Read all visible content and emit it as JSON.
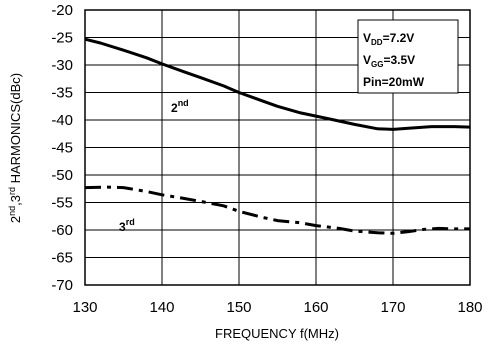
{
  "chart_data": {
    "type": "line",
    "title": "",
    "xlabel": "FREQUENCY f(MHz)",
    "ylabel": {
      "a": "2",
      "a_sup": "nd",
      "b": ",3",
      "b_sup": "rd",
      "c": " HARMONICS(dBc)"
    },
    "xlim": [
      130,
      180
    ],
    "ylim": [
      -70,
      -20
    ],
    "x_ticks": [
      "130",
      "140",
      "150",
      "160",
      "170",
      "180"
    ],
    "y_ticks": [
      "-20",
      "-25",
      "-30",
      "-35",
      "-40",
      "-45",
      "-50",
      "-55",
      "-60",
      "-65",
      "-70"
    ],
    "grid": true,
    "series": [
      {
        "name": "2nd",
        "style": "solid",
        "label": {
          "base": "2",
          "sup": "nd"
        },
        "x": [
          130,
          132,
          135,
          138,
          140,
          143,
          145,
          148,
          150,
          153,
          155,
          158,
          160,
          162,
          165,
          168,
          170,
          172,
          175,
          178,
          180
        ],
        "values": [
          -25.3,
          -26.0,
          -27.3,
          -28.7,
          -29.8,
          -31.3,
          -32.3,
          -33.8,
          -35.0,
          -36.5,
          -37.5,
          -38.7,
          -39.3,
          -39.9,
          -40.8,
          -41.6,
          -41.7,
          -41.5,
          -41.2,
          -41.2,
          -41.3
        ]
      },
      {
        "name": "3rd",
        "style": "dashdot",
        "label": {
          "base": "3",
          "sup": "rd"
        },
        "x": [
          130,
          133,
          135,
          138,
          140,
          143,
          145,
          148,
          150,
          153,
          155,
          158,
          160,
          163,
          165,
          168,
          170,
          172,
          174,
          176,
          178,
          180
        ],
        "values": [
          -52.3,
          -52.2,
          -52.3,
          -53.0,
          -53.6,
          -54.3,
          -54.8,
          -55.6,
          -56.6,
          -57.7,
          -58.3,
          -58.7,
          -59.2,
          -59.7,
          -60.2,
          -60.5,
          -60.6,
          -60.3,
          -59.9,
          -59.7,
          -59.8,
          -59.8
        ]
      }
    ],
    "annotation": {
      "vdd": {
        "base": "V",
        "sub": "DD",
        "value": "=7.2V"
      },
      "vgg": {
        "base": "V",
        "sub": "GG",
        "value": "=3.5V"
      },
      "pin": "Pin=20mW"
    }
  }
}
